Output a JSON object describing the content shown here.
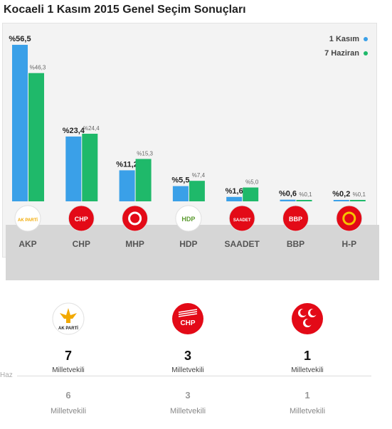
{
  "title": "Kocaeli 1 Kasım 2015 Genel Seçim Sonuçları",
  "legend": [
    {
      "label": "1 Kasım",
      "color": "#3aa0e8"
    },
    {
      "label": "7 Haziran",
      "color": "#1fb96a"
    }
  ],
  "chart_data": {
    "type": "bar",
    "categories": [
      "AKP",
      "CHP",
      "MHP",
      "HDP",
      "SAADET",
      "BBP",
      "H-P"
    ],
    "series": [
      {
        "name": "1 Kasım",
        "values": [
          56.5,
          23.4,
          11.2,
          5.5,
          1.6,
          0.6,
          0.2
        ],
        "labels": [
          "%56,5",
          "%23,4",
          "%11,2",
          "%5,5",
          "%1,6",
          "%0,6",
          "%0,2"
        ]
      },
      {
        "name": "7 Haziran",
        "values": [
          46.3,
          24.4,
          15.3,
          7.4,
          5.0,
          0.1,
          0.1
        ],
        "labels": [
          "%46,3",
          "%24,4",
          "%15,3",
          "%7,4",
          "%5,0",
          "%0,1",
          "%0,1"
        ]
      }
    ],
    "colors": [
      "#3aa0e8",
      "#1fb96a"
    ],
    "title": "",
    "xlabel": "",
    "ylabel": "",
    "ylim": [
      0,
      56.5
    ],
    "grid": false,
    "legend_position": "top-right"
  },
  "party_logos": [
    {
      "name": "AKP",
      "logo_text": "AK PARTİ",
      "bg": "#ffffff",
      "fg": "#f2a900"
    },
    {
      "name": "CHP",
      "logo_text": "CHP",
      "bg": "#e30a17",
      "fg": "#ffffff"
    },
    {
      "name": "MHP",
      "logo_text": "",
      "bg": "#e30a17",
      "fg": "#ffffff"
    },
    {
      "name": "HDP",
      "logo_text": "HDP",
      "bg": "#ffffff",
      "fg": "#5b9a2f"
    },
    {
      "name": "SAADET",
      "logo_text": "SAADET",
      "bg": "#e30a17",
      "fg": "#ffffff"
    },
    {
      "name": "BBP",
      "logo_text": "BBP",
      "bg": "#e30a17",
      "fg": "#ffffff"
    },
    {
      "name": "H-P",
      "logo_text": "",
      "bg": "#e30a17",
      "fg": "#f5c400"
    }
  ],
  "seats": {
    "current": [
      {
        "party": "AKP",
        "count": "7",
        "label": "Milletvekili"
      },
      {
        "party": "CHP",
        "count": "3",
        "label": "Milletvekili"
      },
      {
        "party": "MHP",
        "count": "1",
        "label": "Milletvekili"
      }
    ],
    "previous": [
      {
        "count": "6",
        "label": "Milletvekili"
      },
      {
        "count": "3",
        "label": "Milletvekili"
      },
      {
        "count": "1",
        "label": "Milletvekili"
      }
    ],
    "previous_caption": "Haz"
  }
}
